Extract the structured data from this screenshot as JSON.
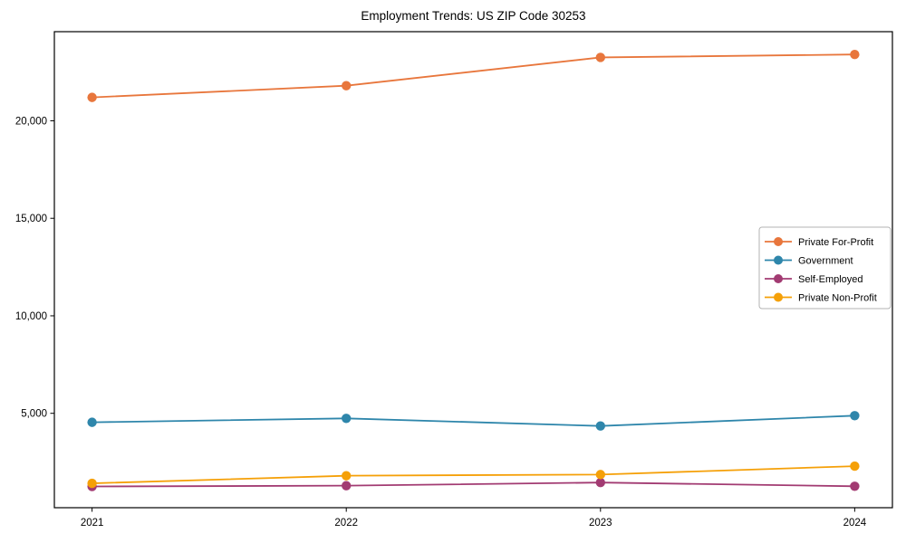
{
  "figure": {
    "background": "#ffffff",
    "spine_color": "#000000",
    "tick_label_color": "#000000",
    "legend_border_color": "#b3b3b3"
  },
  "chart_data": {
    "type": "line",
    "title": "Employment Trends: US ZIP Code 30253",
    "xlabel": "",
    "ylabel": "",
    "categories": [
      "2021",
      "2022",
      "2023",
      "2024"
    ],
    "series": [
      {
        "name": "Private For-Profit",
        "color": "#E8763C",
        "values": [
          21200,
          21800,
          23250,
          23400
        ]
      },
      {
        "name": "Government",
        "color": "#2E86AB",
        "values": [
          4540,
          4740,
          4350,
          4880
        ]
      },
      {
        "name": "Self-Employed",
        "color": "#A23B72",
        "values": [
          1250,
          1290,
          1450,
          1260
        ]
      },
      {
        "name": "Private Non-Profit",
        "color": "#F5A008",
        "values": [
          1410,
          1800,
          1860,
          2290
        ]
      }
    ],
    "y_ticks": [
      5000,
      10000,
      15000,
      20000
    ],
    "y_tick_labels": [
      "5,000",
      "10,000",
      "15,000",
      "20,000"
    ],
    "ylim": [
      160,
      24570
    ],
    "grid": false,
    "marker": "circle",
    "legend_position": "center-right"
  }
}
